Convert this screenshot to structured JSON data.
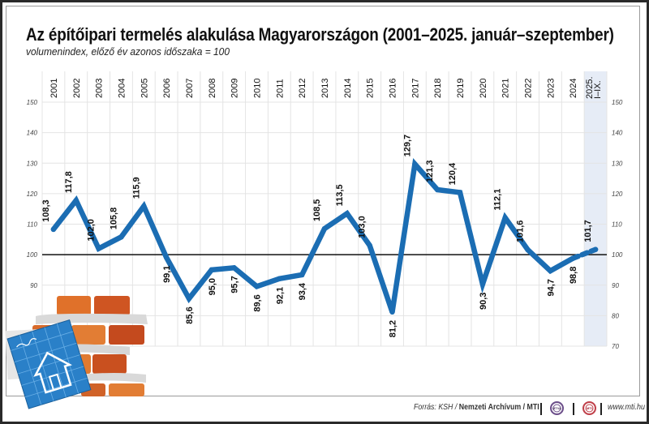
{
  "header": {
    "title": "Az építőipari termelés alakulása Magyarországon (2001–2025. január–szeptember)",
    "subtitle": "volumenindex, előző év azonos időszaka = 100"
  },
  "footer": {
    "source_prefix": "Forrás: KSH / ",
    "source_bold": "Nemzeti Archívum / MTI",
    "logo_1": "MTVA",
    "logo_2": "MTI",
    "url": "www.mti.hu"
  },
  "colors": {
    "line": "#1b6db3",
    "highlight_column": "#e6ecf6",
    "grid": "#e4e4e4",
    "baseline": "#111111"
  },
  "chart_data": {
    "type": "line",
    "title": "Az építőipari termelés alakulása Magyarországon (2001–2025. január–szeptember)",
    "subtitle": "volumenindex, előző év azonos időszaka = 100",
    "categories": [
      "2001",
      "2002",
      "2003",
      "2004",
      "2005",
      "2006",
      "2007",
      "2008",
      "2009",
      "2010",
      "2011",
      "2012",
      "2013",
      "2014",
      "2015",
      "2016",
      "2017",
      "2018",
      "2019",
      "2020",
      "2021",
      "2022",
      "2023",
      "2024",
      "2025. I–IX."
    ],
    "series": [
      {
        "name": "volumenindex",
        "values": [
          108.3,
          117.8,
          102.0,
          105.8,
          115.9,
          99.1,
          85.6,
          95.0,
          95.7,
          89.6,
          92.1,
          93.4,
          108.5,
          113.5,
          103.0,
          81.2,
          129.7,
          121.3,
          120.4,
          90.3,
          112.1,
          101.6,
          94.7,
          98.8,
          101.7
        ],
        "labels": [
          "108,3",
          "117,8",
          "102,0",
          "105,8",
          "115,9",
          "99,1",
          "85,6",
          "95,0",
          "95,7",
          "89,6",
          "92,1",
          "93,4",
          "108,5",
          "113,5",
          "103,0",
          "81,2",
          "129,7",
          "121,3",
          "120,4",
          "90,3",
          "112,1",
          "101,6",
          "94,7",
          "98,8",
          "101,7"
        ],
        "label_position": [
          "above",
          "above",
          "above",
          "above",
          "above",
          "below",
          "below",
          "below",
          "below",
          "below",
          "below",
          "below",
          "above",
          "above",
          "above",
          "below",
          "above",
          "above",
          "above",
          "below",
          "above",
          "above",
          "below",
          "below",
          "above"
        ]
      }
    ],
    "highlighted_category": "2025. I–IX.",
    "dashed_last_segment": true,
    "reference_line": 100,
    "ylim": [
      70,
      150
    ],
    "yticks": [
      "150",
      "140",
      "130",
      "120",
      "110",
      "100",
      "90",
      "80",
      "70"
    ],
    "yticks_left": [
      "150",
      "140",
      "130",
      "120",
      "110",
      "100",
      "90"
    ],
    "grid": true,
    "xlabel": "",
    "ylabel": ""
  }
}
